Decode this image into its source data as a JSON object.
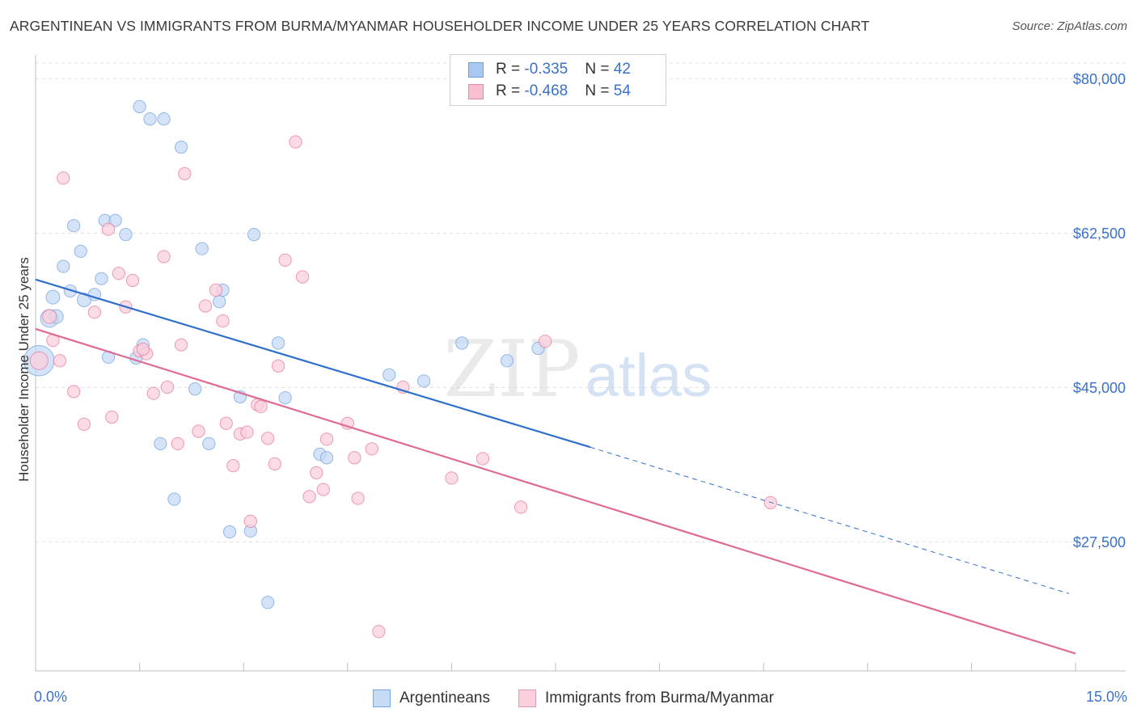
{
  "title": "ARGENTINEAN VS IMMIGRANTS FROM BURMA/MYANMAR HOUSEHOLDER INCOME UNDER 25 YEARS CORRELATION CHART",
  "source": "Source: ZipAtlas.com",
  "watermark": {
    "zip": "ZIP",
    "atlas": "atlas"
  },
  "stats": [
    {
      "r_label": "R = ",
      "r_value": "-0.335",
      "n_label": "N = ",
      "n_value": "42",
      "color": "#a9c8f0",
      "border": "#6f9fdc"
    },
    {
      "r_label": "R = ",
      "r_value": "-0.468",
      "n_label": "N = ",
      "n_value": "54",
      "color": "#f7bfd0",
      "border": "#e38aa6"
    }
  ],
  "legend": [
    {
      "label": "Argentineans",
      "color": "#c5daf5",
      "border": "#7aa6de"
    },
    {
      "label": "Immigrants from Burma/Myanmar",
      "color": "#f9d0dc",
      "border": "#e79bb3"
    }
  ],
  "chart_data": {
    "type": "scatter",
    "title": "ARGENTINEAN VS IMMIGRANTS FROM BURMA/MYANMAR HOUSEHOLDER INCOME UNDER 25 YEARS CORRELATION CHART",
    "xlabel": "",
    "ylabel": "Householder Income Under 25 years",
    "xlim": [
      0,
      15
    ],
    "ylim": [
      10000,
      84000
    ],
    "x_tick_labels": [
      "0.0%",
      "15.0%"
    ],
    "y_ticks": [
      27500,
      45000,
      62500,
      80000
    ],
    "y_tick_labels": [
      "$27,500",
      "$45,000",
      "$62,500",
      "$80,000"
    ],
    "grid": "horizontal dashed",
    "legend_position": "bottom-center",
    "series": [
      {
        "name": "Argentineans",
        "color": "#6f9fdc",
        "fill": "#c5daf5",
        "trend": {
          "x0": 0.0,
          "y0": 57200,
          "x1": 8.0,
          "y1": 38200,
          "dash_to_x": 15.0,
          "dash_to_y": 21600
        },
        "points": [
          [
            0.05,
            48000,
            2.2
          ],
          [
            0.2,
            52800,
            1.3
          ],
          [
            0.25,
            55200,
            1.0
          ],
          [
            0.4,
            58700,
            0.9
          ],
          [
            0.5,
            55900,
            0.9
          ],
          [
            0.55,
            63300,
            0.9
          ],
          [
            0.65,
            60400,
            0.9
          ],
          [
            0.7,
            54900,
            1.0
          ],
          [
            0.85,
            55500,
            0.9
          ],
          [
            0.95,
            57300,
            0.9
          ],
          [
            1.0,
            63900,
            0.9
          ],
          [
            1.15,
            63900,
            0.9
          ],
          [
            1.05,
            48400,
            0.9
          ],
          [
            1.3,
            62300,
            0.9
          ],
          [
            1.45,
            48300,
            0.9
          ],
          [
            1.55,
            49800,
            0.9
          ],
          [
            1.5,
            76800,
            0.9
          ],
          [
            1.65,
            75400,
            0.9
          ],
          [
            1.85,
            75400,
            0.9
          ],
          [
            1.8,
            38600,
            0.9
          ],
          [
            2.0,
            32300,
            0.9
          ],
          [
            2.1,
            72200,
            0.9
          ],
          [
            2.3,
            44800,
            0.9
          ],
          [
            2.5,
            38600,
            0.9
          ],
          [
            2.65,
            54700,
            0.9
          ],
          [
            2.7,
            56000,
            0.9
          ],
          [
            2.8,
            28600,
            0.9
          ],
          [
            2.95,
            43900,
            0.9
          ],
          [
            2.4,
            60700,
            0.9
          ],
          [
            3.1,
            28700,
            0.9
          ],
          [
            3.15,
            62300,
            0.9
          ],
          [
            3.35,
            20600,
            0.9
          ],
          [
            3.5,
            50000,
            0.9
          ],
          [
            3.6,
            43800,
            0.9
          ],
          [
            4.1,
            37400,
            0.9
          ],
          [
            4.2,
            37000,
            0.9
          ],
          [
            5.1,
            46400,
            0.9
          ],
          [
            5.6,
            45700,
            0.9
          ],
          [
            6.15,
            50000,
            0.9
          ],
          [
            6.8,
            48000,
            0.9
          ],
          [
            7.25,
            49400,
            0.9
          ],
          [
            0.3,
            53000,
            1.0
          ]
        ]
      },
      {
        "name": "Immigrants from Burma/Myanmar",
        "color": "#e67399",
        "fill": "#f9d0dc",
        "trend": {
          "x0": 0.0,
          "y0": 51600,
          "x1": 15.0,
          "y1": 14800
        },
        "points": [
          [
            0.05,
            48000,
            1.3
          ],
          [
            0.2,
            53000,
            1.0
          ],
          [
            0.25,
            50300,
            0.9
          ],
          [
            0.35,
            48000,
            0.9
          ],
          [
            0.4,
            68700,
            0.9
          ],
          [
            0.55,
            44500,
            0.9
          ],
          [
            0.7,
            40800,
            0.9
          ],
          [
            0.85,
            53500,
            0.9
          ],
          [
            1.05,
            62900,
            0.9
          ],
          [
            1.2,
            57900,
            0.9
          ],
          [
            1.3,
            54100,
            0.9
          ],
          [
            1.4,
            57100,
            0.9
          ],
          [
            1.1,
            41600,
            0.9
          ],
          [
            1.5,
            49100,
            0.9
          ],
          [
            1.6,
            48800,
            0.9
          ],
          [
            1.7,
            44300,
            0.9
          ],
          [
            1.85,
            59800,
            0.9
          ],
          [
            1.9,
            45000,
            0.9
          ],
          [
            2.05,
            38600,
            0.9
          ],
          [
            2.1,
            49800,
            0.9
          ],
          [
            2.15,
            69200,
            0.9
          ],
          [
            2.35,
            40000,
            0.9
          ],
          [
            2.45,
            54200,
            0.9
          ],
          [
            2.6,
            56000,
            0.9
          ],
          [
            2.7,
            52500,
            0.9
          ],
          [
            2.75,
            40900,
            0.9
          ],
          [
            2.85,
            36100,
            0.9
          ],
          [
            2.95,
            39700,
            0.9
          ],
          [
            3.05,
            39900,
            0.9
          ],
          [
            3.2,
            43000,
            0.9
          ],
          [
            3.25,
            42800,
            0.9
          ],
          [
            3.35,
            39200,
            0.9
          ],
          [
            3.45,
            36300,
            0.9
          ],
          [
            3.5,
            47400,
            0.9
          ],
          [
            3.6,
            59400,
            0.9
          ],
          [
            3.75,
            72800,
            0.9
          ],
          [
            3.85,
            57500,
            0.9
          ],
          [
            3.95,
            32600,
            0.9
          ],
          [
            4.05,
            35300,
            0.9
          ],
          [
            4.15,
            33400,
            0.9
          ],
          [
            4.2,
            39100,
            0.9
          ],
          [
            4.5,
            40900,
            0.9
          ],
          [
            4.6,
            37000,
            0.9
          ],
          [
            4.65,
            32400,
            0.9
          ],
          [
            4.85,
            38000,
            0.9
          ],
          [
            4.95,
            17300,
            0.9
          ],
          [
            5.3,
            45000,
            0.9
          ],
          [
            6.0,
            34700,
            0.9
          ],
          [
            6.45,
            36900,
            0.9
          ],
          [
            7.0,
            31400,
            0.9
          ],
          [
            7.35,
            50200,
            0.9
          ],
          [
            10.6,
            31900,
            0.9
          ],
          [
            3.1,
            29800,
            0.9
          ],
          [
            1.55,
            49300,
            0.9
          ]
        ]
      }
    ]
  }
}
